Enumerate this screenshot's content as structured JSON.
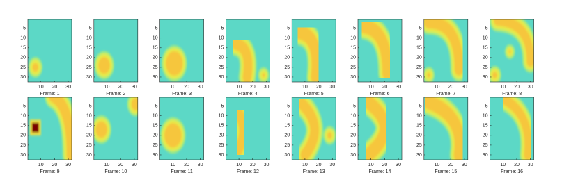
{
  "axes": {
    "xlim": [
      0.5,
      32.5
    ],
    "ylim": [
      0.5,
      32.5
    ],
    "xticks": [
      10,
      20,
      30
    ],
    "yticks": [
      5,
      10,
      15,
      20,
      25,
      30
    ]
  },
  "panels": [
    {
      "label": "Frame: 1"
    },
    {
      "label": "Frame: 2"
    },
    {
      "label": "Frame: 3"
    },
    {
      "label": "Frame: 4"
    },
    {
      "label": "Frame: 5"
    },
    {
      "label": "Frame: 6"
    },
    {
      "label": "Frame: 7"
    },
    {
      "label": "Frame: 8"
    },
    {
      "label": "Frame: 9"
    },
    {
      "label": "Frame: 10"
    },
    {
      "label": "Frame: 11"
    },
    {
      "label": "Frame: 12"
    },
    {
      "label": "Frame: 13"
    },
    {
      "label": "Frame: 14"
    },
    {
      "label": "Frame: 15"
    },
    {
      "label": "Frame: 16"
    }
  ]
}
